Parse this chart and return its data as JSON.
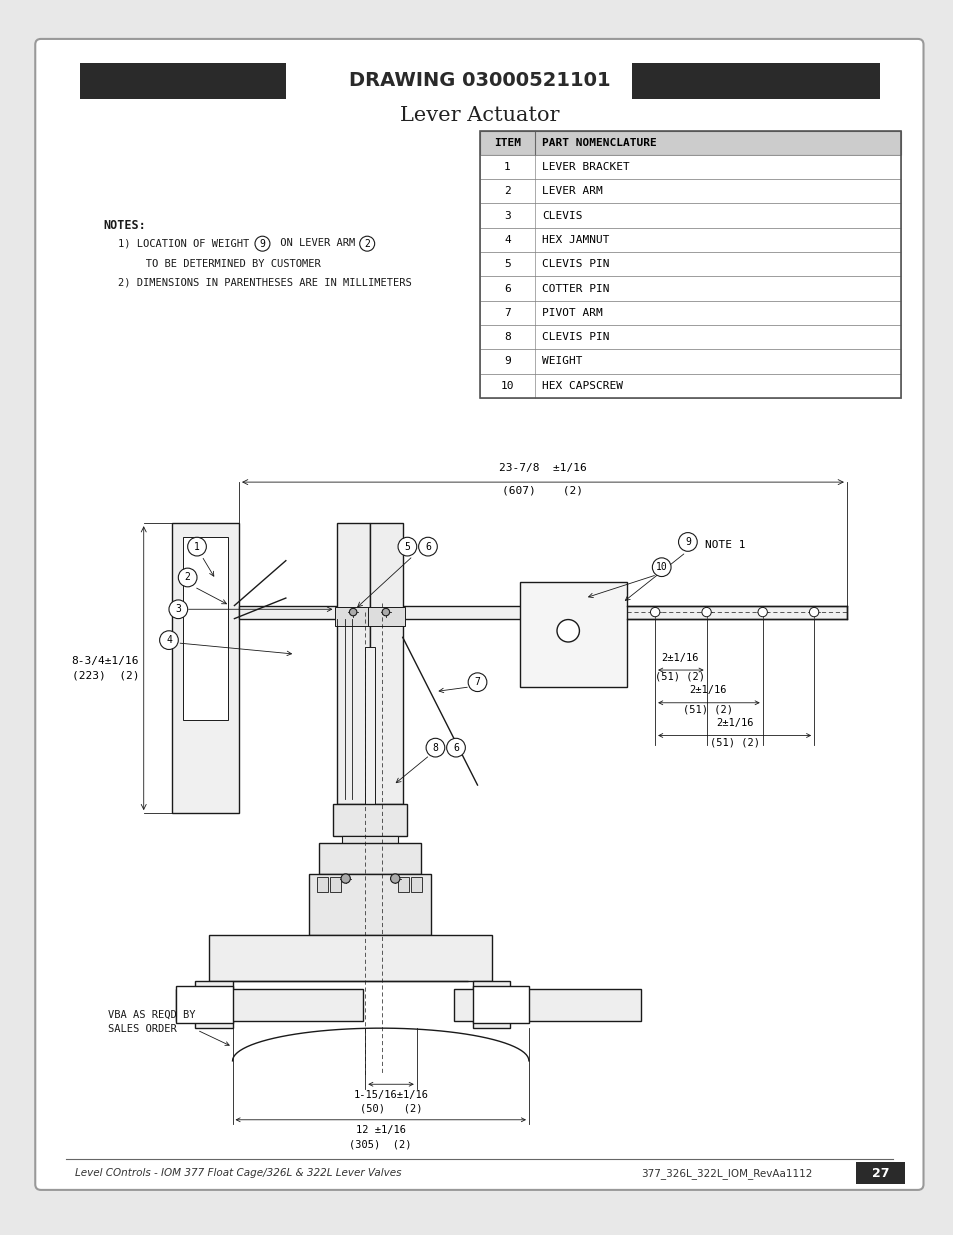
{
  "page_bg": "#e8e8e8",
  "card_bg": "#ffffff",
  "title_bar_text": "DRAWING 03000521101",
  "subtitle": "Lever Actuator",
  "table_header_bg": "#cccccc",
  "table_rows": [
    [
      "1",
      "LEVER BRACKET"
    ],
    [
      "2",
      "LEVER ARM"
    ],
    [
      "3",
      "CLEVIS"
    ],
    [
      "4",
      "HEX JAMNUT"
    ],
    [
      "5",
      "CLEVIS PIN"
    ],
    [
      "6",
      "COTTER PIN"
    ],
    [
      "7",
      "PIVOT ARM"
    ],
    [
      "8",
      "CLEVIS PIN"
    ],
    [
      "9",
      "WEIGHT"
    ],
    [
      "10",
      "HEX CAPSCREW"
    ]
  ],
  "notes_title": "NOTES:",
  "note1": "1) LOCATION OF WEIGHT ",
  "note1_num9": "9",
  "note1_mid": " ON LEVER ARM ",
  "note1_num2": "2",
  "note2": "   TO BE DETERMINED BY CUSTOMER",
  "note3": "2) DIMENSIONS IN PARENTHESES ARE IN MILLIMETERS",
  "footer_left": "Level COntrols - IOM 377 Float Cage/326L & 322L Lever Valves",
  "footer_right": "377_326L_322L_IOM_RevAa1112",
  "page_number": "27",
  "dim_overall_top": "23-7/8  ±1/16",
  "dim_overall_mm": "(607)    (2)",
  "dim_left_label": "8-3/4±1/16",
  "dim_left_mm": "(223)  (2)",
  "dim_r1": "2±1/16",
  "dim_r1mm": "(51) (2)",
  "dim_r2": "2±1/16",
  "dim_r2mm": "(51) (2)",
  "dim_r3": "2±1/16",
  "dim_r3mm": "(51) (2)",
  "dim_b1": "1-15/16±1/16",
  "dim_b1mm": "(50)   (2)",
  "dim_b2": "12 ±1/16",
  "dim_b2mm": "(305)  (2)",
  "vba_label": "VBA AS REQD BY",
  "vba_label2": "SALES ORDER",
  "note1_label": "NOTE 1",
  "lc": "#1a1a1a",
  "lw_main": 1.0,
  "lw_dim": 0.6
}
